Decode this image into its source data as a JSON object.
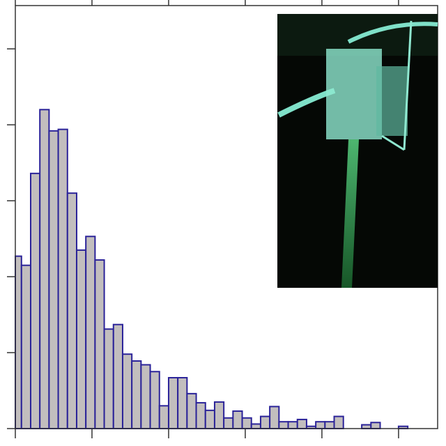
{
  "chart_data": {
    "type": "histogram",
    "bins": [
      0,
      0.08,
      0.2,
      0.32,
      0.44,
      0.56,
      0.68,
      0.8,
      0.92,
      1.04,
      1.16,
      1.28,
      1.4,
      1.52,
      1.64,
      1.76,
      1.88,
      2.0,
      2.12,
      2.24,
      2.36,
      2.48,
      2.6,
      2.72,
      2.84,
      2.96,
      3.08,
      3.2,
      3.32,
      3.44,
      3.56,
      3.68,
      3.8,
      3.92,
      4.04,
      4.16,
      4.28,
      4.4,
      4.52,
      4.64,
      4.76,
      4.88,
      5.0,
      5.12
    ],
    "values": [
      2.27,
      2.15,
      3.36,
      4.2,
      3.92,
      3.94,
      3.1,
      2.35,
      2.53,
      2.22,
      1.31,
      1.37,
      0.98,
      0.89,
      0.84,
      0.75,
      0.3,
      0.67,
      0.67,
      0.46,
      0.34,
      0.24,
      0.35,
      0.14,
      0.23,
      0.14,
      0.06,
      0.16,
      0.29,
      0.09,
      0.09,
      0.12,
      0.03,
      0.09,
      0.09,
      0.16,
      0,
      0,
      0.05,
      0.08,
      0,
      0,
      0.03
    ],
    "color": "#c2bebe",
    "edgecolor": "#2b2399",
    "xlim": [
      0,
      5.51
    ],
    "ylim": [
      0,
      5.57
    ],
    "xticks": [
      0,
      1,
      2,
      3,
      4,
      5
    ],
    "yticks": [
      0,
      1,
      2,
      3,
      4,
      5
    ]
  }
}
